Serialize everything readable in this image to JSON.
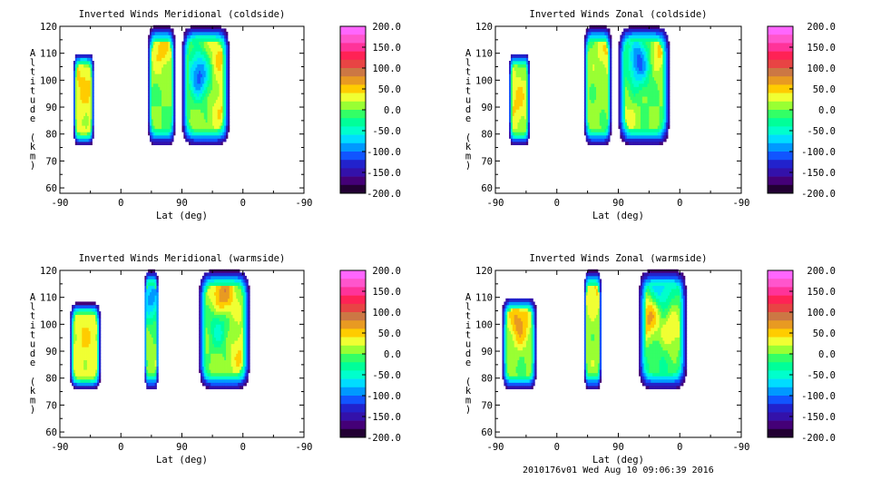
{
  "footer": {
    "text": "2010176v01 Wed Aug 10 09:06:39 2016"
  },
  "colorbar": {
    "tick_labels": [
      "200.0",
      "150.0",
      "100.0",
      "50.0",
      "0.0",
      "-50.0",
      "-100.0",
      "-150.0",
      "-200.0"
    ],
    "colors": [
      "#ff66ff",
      "#ff55cc",
      "#ff3399",
      "#ff2255",
      "#e84444",
      "#cc7744",
      "#e89a22",
      "#ffcc00",
      "#f0ff33",
      "#99ff33",
      "#33ff66",
      "#00ff99",
      "#00ffcc",
      "#00ddff",
      "#0099ff",
      "#1155ff",
      "#2222cc",
      "#3311aa",
      "#440077",
      "#220033"
    ]
  },
  "chart_data": [
    {
      "type": "heatmap",
      "title": "Inverted Winds Meridional (coldside)",
      "xlabel": "Lat (deg)",
      "ylabel": "Altitude (km)",
      "x_tick_labels": [
        "-90",
        "0",
        "90",
        "0",
        "-90"
      ],
      "ylim": [
        58,
        120
      ],
      "y_ticks": [
        120,
        110,
        100,
        90,
        80,
        70,
        60
      ],
      "zlim": [
        -200,
        200
      ],
      "regions": [
        {
          "x": [
            -70,
            -40
          ],
          "y": [
            76,
            110
          ],
          "core": 25,
          "edge": -170
        },
        {
          "x": [
            40,
            80
          ],
          "y": [
            76,
            120
          ],
          "core": 0,
          "edge": -170
        },
        {
          "x": [
            90,
            160
          ],
          "y": [
            76,
            120
          ],
          "core": 10,
          "edge": -170
        }
      ],
      "features": [
        {
          "x": 115,
          "y": 102,
          "value": -110
        },
        {
          "x": 150,
          "y": 90,
          "value": 40
        },
        {
          "x": 60,
          "y": 112,
          "value": 50
        },
        {
          "x": -55,
          "y": 98,
          "value": 45
        },
        {
          "x": 145,
          "y": 110,
          "value": 45
        }
      ]
    },
    {
      "type": "heatmap",
      "title": "Inverted Winds Zonal (coldside)",
      "xlabel": "Lat (deg)",
      "ylabel": "Altitude (km)",
      "x_tick_labels": [
        "-90",
        "0",
        "90",
        "0",
        "-90"
      ],
      "ylim": [
        58,
        120
      ],
      "y_ticks": [
        120,
        110,
        100,
        90,
        80,
        70,
        60
      ],
      "zlim": [
        -200,
        200
      ],
      "regions": [
        {
          "x": [
            -70,
            -40
          ],
          "y": [
            76,
            110
          ],
          "core": 10,
          "edge": -170
        },
        {
          "x": [
            40,
            80
          ],
          "y": [
            76,
            120
          ],
          "core": 5,
          "edge": -170
        },
        {
          "x": [
            90,
            165
          ],
          "y": [
            76,
            120
          ],
          "core": 0,
          "edge": -170
        }
      ],
      "features": [
        {
          "x": 120,
          "y": 107,
          "value": -110
        },
        {
          "x": 150,
          "y": 112,
          "value": 50
        },
        {
          "x": 100,
          "y": 85,
          "value": 30
        },
        {
          "x": -58,
          "y": 92,
          "value": 45
        },
        {
          "x": 75,
          "y": 110,
          "value": 40
        }
      ]
    },
    {
      "type": "heatmap",
      "title": "Inverted Winds Meridional (warmside)",
      "xlabel": "Lat (deg)",
      "ylabel": "Altitude (km)",
      "x_tick_labels": [
        "-90",
        "0",
        "90",
        "0",
        "-90"
      ],
      "ylim": [
        58,
        120
      ],
      "y_ticks": [
        120,
        110,
        100,
        90,
        80,
        70,
        60
      ],
      "zlim": [
        -200,
        200
      ],
      "regions": [
        {
          "x": [
            -75,
            -30
          ],
          "y": [
            76,
            108
          ],
          "core": 25,
          "edge": -170
        },
        {
          "x": [
            35,
            55
          ],
          "y": [
            76,
            120
          ],
          "core": 10,
          "edge": -170
        },
        {
          "x": [
            115,
            190
          ],
          "y": [
            76,
            120
          ],
          "core": 10,
          "edge": -170
        }
      ],
      "features": [
        {
          "x": 150,
          "y": 110,
          "value": 90
        },
        {
          "x": 145,
          "y": 100,
          "value": -60
        },
        {
          "x": -50,
          "y": 95,
          "value": 40
        },
        {
          "x": 175,
          "y": 90,
          "value": 40
        },
        {
          "x": 45,
          "y": 110,
          "value": -90
        }
      ]
    },
    {
      "type": "heatmap",
      "title": "Inverted Winds Zonal (warmside)",
      "xlabel": "Lat (deg)",
      "ylabel": "Altitude (km)",
      "x_tick_labels": [
        "-90",
        "0",
        "90",
        "0",
        "-90"
      ],
      "ylim": [
        58,
        120
      ],
      "y_ticks": [
        120,
        110,
        100,
        90,
        80,
        70,
        60
      ],
      "zlim": [
        -200,
        200
      ],
      "regions": [
        {
          "x": [
            -80,
            -30
          ],
          "y": [
            76,
            110
          ],
          "core": 0,
          "edge": -170
        },
        {
          "x": [
            40,
            65
          ],
          "y": [
            76,
            120
          ],
          "core": 10,
          "edge": -170
        },
        {
          "x": [
            120,
            190
          ],
          "y": [
            76,
            120
          ],
          "core": -20,
          "edge": -170
        }
      ],
      "features": [
        {
          "x": -55,
          "y": 101,
          "value": 70
        },
        {
          "x": 135,
          "y": 103,
          "value": 70
        },
        {
          "x": 170,
          "y": 98,
          "value": 40
        },
        {
          "x": 55,
          "y": 115,
          "value": 50
        },
        {
          "x": 150,
          "y": 115,
          "value": -90
        }
      ]
    }
  ]
}
